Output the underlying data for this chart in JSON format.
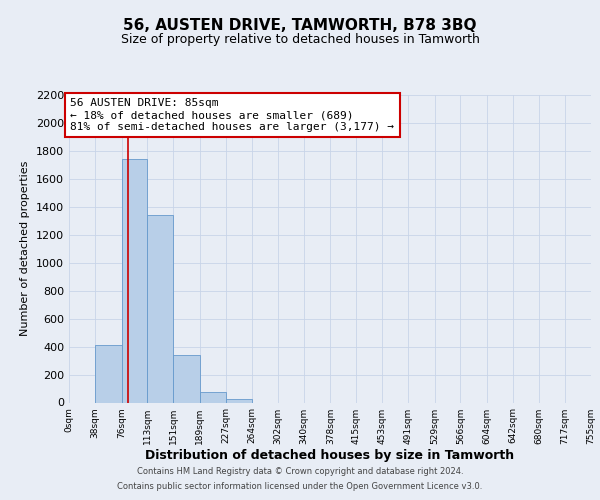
{
  "title": "56, AUSTEN DRIVE, TAMWORTH, B78 3BQ",
  "subtitle": "Size of property relative to detached houses in Tamworth",
  "xlabel": "Distribution of detached houses by size in Tamworth",
  "ylabel": "Number of detached properties",
  "bin_edges": [
    0,
    38,
    76,
    113,
    151,
    189,
    227,
    264,
    302,
    340,
    378,
    415,
    453,
    491,
    529,
    566,
    604,
    642,
    680,
    717,
    755
  ],
  "bar_heights": [
    0,
    410,
    1740,
    1340,
    340,
    75,
    25,
    0,
    0,
    0,
    0,
    0,
    0,
    0,
    0,
    0,
    0,
    0,
    0,
    0
  ],
  "bar_color": "#b8cfe8",
  "bar_edge_color": "#6699cc",
  "grid_color": "#c8d4e8",
  "bg_color": "#e8edf5",
  "property_line_x": 85,
  "property_line_color": "#cc0000",
  "annotation_line1": "56 AUSTEN DRIVE: 85sqm",
  "annotation_line2": "← 18% of detached houses are smaller (689)",
  "annotation_line3": "81% of semi-detached houses are larger (3,177) →",
  "annotation_box_facecolor": "#ffffff",
  "annotation_box_edgecolor": "#cc0000",
  "ylim": [
    0,
    2200
  ],
  "yticks": [
    0,
    200,
    400,
    600,
    800,
    1000,
    1200,
    1400,
    1600,
    1800,
    2000,
    2200
  ],
  "tick_labels": [
    "0sqm",
    "38sqm",
    "76sqm",
    "113sqm",
    "151sqm",
    "189sqm",
    "227sqm",
    "264sqm",
    "302sqm",
    "340sqm",
    "378sqm",
    "415sqm",
    "453sqm",
    "491sqm",
    "529sqm",
    "566sqm",
    "604sqm",
    "642sqm",
    "680sqm",
    "717sqm",
    "755sqm"
  ],
  "footer_line1": "Contains HM Land Registry data © Crown copyright and database right 2024.",
  "footer_line2": "Contains public sector information licensed under the Open Government Licence v3.0.",
  "title_fontsize": 11,
  "subtitle_fontsize": 9,
  "xlabel_fontsize": 9,
  "ylabel_fontsize": 8,
  "xtick_fontsize": 6.5,
  "ytick_fontsize": 8,
  "footer_fontsize": 6,
  "annot_fontsize": 8
}
